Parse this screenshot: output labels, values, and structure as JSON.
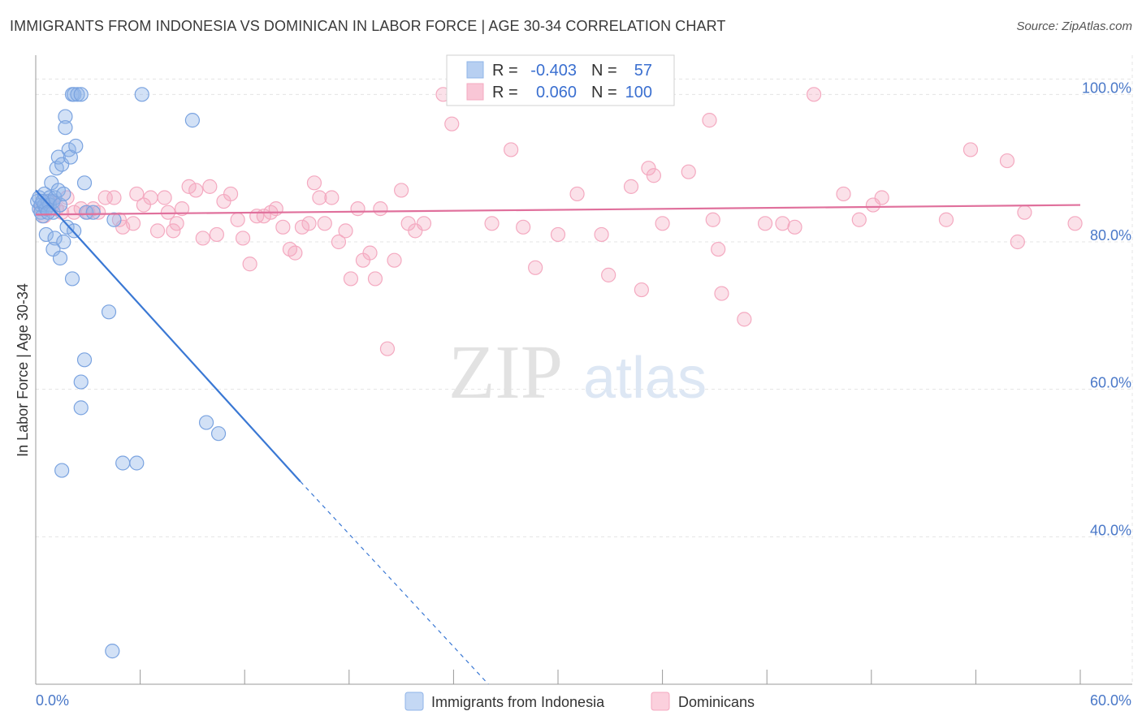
{
  "title": "IMMIGRANTS FROM INDONESIA VS DOMINICAN IN LABOR FORCE | AGE 30-34 CORRELATION CHART",
  "source": "Source: ZipAtlas.com",
  "watermark": {
    "zip": "ZIP",
    "atlas": "atlas"
  },
  "chart_data": {
    "type": "scatter",
    "xlabel": "",
    "ylabel": "In Labor Force | Age 30-34",
    "xlim": [
      0,
      60
    ],
    "ylim": [
      20,
      104
    ],
    "x_tick_labels": [
      "0.0%",
      "60.0%"
    ],
    "y_ticks": [
      40,
      60,
      80,
      100
    ],
    "y_tick_labels": [
      "40.0%",
      "60.0%",
      "80.0%",
      "100.0%"
    ],
    "grid": true,
    "legend": {
      "entries": [
        "Immigrants from Indonesia",
        "Dominicans"
      ],
      "position": "bottom-center"
    },
    "stats": [
      {
        "r_label": "R =",
        "r": "-0.403",
        "n_label": "N =",
        "n": "57"
      },
      {
        "r_label": "R =",
        "r": "0.060",
        "n_label": "N =",
        "n": "100"
      }
    ],
    "series": [
      {
        "name": "Immigrants from Indonesia",
        "color": "#8fb4e8",
        "line_color": "#3a78d4",
        "trend": {
          "x0": 0,
          "y0": 87.0,
          "x1": 15.2,
          "y1": 47.5,
          "dashed_to_x": 26.0
        },
        "points": [
          [
            0.1,
            85.5
          ],
          [
            0.2,
            86.0
          ],
          [
            0.2,
            84.5
          ],
          [
            0.3,
            85.0
          ],
          [
            0.3,
            84.0
          ],
          [
            0.4,
            83.5
          ],
          [
            0.5,
            86.5
          ],
          [
            0.5,
            85.0
          ],
          [
            0.6,
            84.5
          ],
          [
            0.7,
            85.5
          ],
          [
            0.8,
            86.0
          ],
          [
            0.8,
            85.0
          ],
          [
            0.9,
            88.0
          ],
          [
            1.0,
            84.0
          ],
          [
            1.0,
            85.5
          ],
          [
            1.1,
            86.0
          ],
          [
            1.2,
            90.0
          ],
          [
            1.3,
            87.0
          ],
          [
            1.3,
            91.5
          ],
          [
            1.4,
            85.0
          ],
          [
            1.5,
            90.5
          ],
          [
            1.6,
            86.5
          ],
          [
            1.7,
            97.0
          ],
          [
            1.7,
            95.5
          ],
          [
            1.8,
            82.0
          ],
          [
            1.9,
            92.5
          ],
          [
            2.0,
            91.5
          ],
          [
            2.1,
            100.0
          ],
          [
            2.2,
            100.0
          ],
          [
            2.3,
            93.0
          ],
          [
            2.4,
            100.0
          ],
          [
            2.6,
            100.0
          ],
          [
            2.8,
            88.0
          ],
          [
            2.9,
            84.0
          ],
          [
            0.6,
            81.0
          ],
          [
            1.1,
            80.5
          ],
          [
            1.6,
            80.0
          ],
          [
            2.2,
            81.5
          ],
          [
            1.0,
            79.0
          ],
          [
            1.4,
            77.8
          ],
          [
            2.1,
            75.0
          ],
          [
            2.8,
            64.0
          ],
          [
            2.6,
            61.0
          ],
          [
            2.6,
            57.5
          ],
          [
            4.2,
            70.5
          ],
          [
            1.5,
            49.0
          ],
          [
            5.0,
            50.0
          ],
          [
            5.8,
            50.0
          ],
          [
            4.5,
            83.0
          ],
          [
            3.3,
            84.0
          ],
          [
            6.1,
            100.0
          ],
          [
            9.0,
            96.5
          ],
          [
            9.8,
            55.5
          ],
          [
            10.5,
            54.0
          ],
          [
            4.4,
            24.5
          ],
          [
            0.4,
            85.5
          ],
          [
            0.7,
            84.0
          ]
        ]
      },
      {
        "name": "Dominicans",
        "color": "#f4a9c0",
        "line_color": "#e0709c",
        "trend": {
          "x0": 0,
          "y0": 83.7,
          "x1": 60.0,
          "y1": 85.0
        },
        "points": [
          [
            0.3,
            84.5
          ],
          [
            0.5,
            83.5
          ],
          [
            1.0,
            85.0
          ],
          [
            1.5,
            84.0
          ],
          [
            1.8,
            86.0
          ],
          [
            2.2,
            84.0
          ],
          [
            2.6,
            84.5
          ],
          [
            3.0,
            84.0
          ],
          [
            3.3,
            84.5
          ],
          [
            3.6,
            84.0
          ],
          [
            4.0,
            86.0
          ],
          [
            4.5,
            86.0
          ],
          [
            4.8,
            83.0
          ],
          [
            5.0,
            82.0
          ],
          [
            5.6,
            82.5
          ],
          [
            5.8,
            86.5
          ],
          [
            6.2,
            85.0
          ],
          [
            6.6,
            86.0
          ],
          [
            7.0,
            81.5
          ],
          [
            7.4,
            86.0
          ],
          [
            7.6,
            84.0
          ],
          [
            7.9,
            81.5
          ],
          [
            8.1,
            82.5
          ],
          [
            8.4,
            84.5
          ],
          [
            8.8,
            87.5
          ],
          [
            9.2,
            87.0
          ],
          [
            9.6,
            80.5
          ],
          [
            10.0,
            87.5
          ],
          [
            10.4,
            81.0
          ],
          [
            10.8,
            85.5
          ],
          [
            11.2,
            86.5
          ],
          [
            11.6,
            83.0
          ],
          [
            11.9,
            80.5
          ],
          [
            12.3,
            77.0
          ],
          [
            12.7,
            83.5
          ],
          [
            13.1,
            83.5
          ],
          [
            13.5,
            84.0
          ],
          [
            13.8,
            84.5
          ],
          [
            14.2,
            82.0
          ],
          [
            14.6,
            79.0
          ],
          [
            14.9,
            78.5
          ],
          [
            15.3,
            82.0
          ],
          [
            15.7,
            82.5
          ],
          [
            16.0,
            88.0
          ],
          [
            16.3,
            86.0
          ],
          [
            16.6,
            82.5
          ],
          [
            17.0,
            86.0
          ],
          [
            17.4,
            80.0
          ],
          [
            17.8,
            81.5
          ],
          [
            18.1,
            75.0
          ],
          [
            18.5,
            84.5
          ],
          [
            18.8,
            77.5
          ],
          [
            19.2,
            78.5
          ],
          [
            19.5,
            75.0
          ],
          [
            19.8,
            84.5
          ],
          [
            20.2,
            65.5
          ],
          [
            20.6,
            77.5
          ],
          [
            21.0,
            87.0
          ],
          [
            21.4,
            82.5
          ],
          [
            21.8,
            81.5
          ],
          [
            22.3,
            82.5
          ],
          [
            23.4,
            100.0
          ],
          [
            23.9,
            96.0
          ],
          [
            25.7,
            100.0
          ],
          [
            26.2,
            82.5
          ],
          [
            27.3,
            92.5
          ],
          [
            28.0,
            82.0
          ],
          [
            28.7,
            76.5
          ],
          [
            30.0,
            81.0
          ],
          [
            31.1,
            86.5
          ],
          [
            31.5,
            100.0
          ],
          [
            32.5,
            81.0
          ],
          [
            32.9,
            75.5
          ],
          [
            34.2,
            87.5
          ],
          [
            34.8,
            73.5
          ],
          [
            35.2,
            90.0
          ],
          [
            35.5,
            89.0
          ],
          [
            36.0,
            82.5
          ],
          [
            37.5,
            89.5
          ],
          [
            38.7,
            96.5
          ],
          [
            38.9,
            83.0
          ],
          [
            39.2,
            79.0
          ],
          [
            39.4,
            73.0
          ],
          [
            40.7,
            69.5
          ],
          [
            41.9,
            82.5
          ],
          [
            42.9,
            82.5
          ],
          [
            43.6,
            82.0
          ],
          [
            44.7,
            100.0
          ],
          [
            46.4,
            86.5
          ],
          [
            47.3,
            83.0
          ],
          [
            48.1,
            85.0
          ],
          [
            48.6,
            86.0
          ],
          [
            52.3,
            83.0
          ],
          [
            53.7,
            92.5
          ],
          [
            55.8,
            91.0
          ],
          [
            56.4,
            80.0
          ],
          [
            56.8,
            84.0
          ],
          [
            59.7,
            82.5
          ],
          [
            1.2,
            84.5
          ],
          [
            0.8,
            85.5
          ]
        ]
      }
    ]
  }
}
